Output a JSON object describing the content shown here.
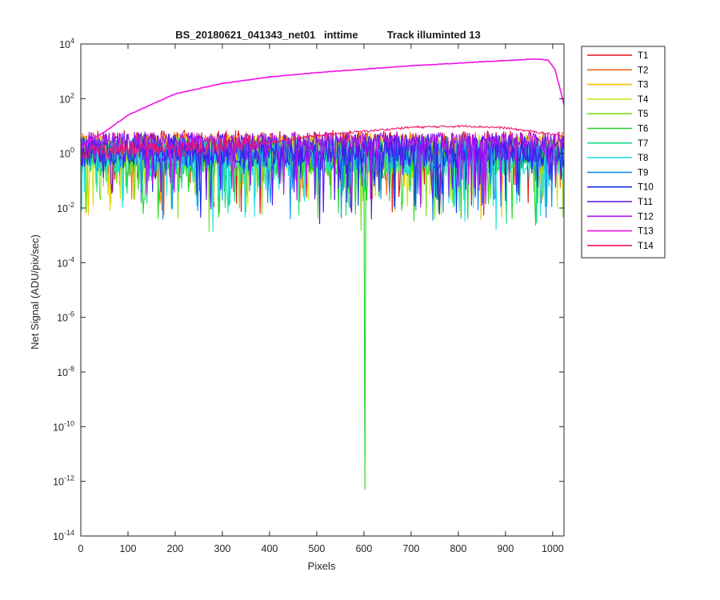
{
  "chart_data": {
    "type": "line",
    "title": "BS_20180621_041343_net01   inttime          Track illuminted 13",
    "xlabel": "Pixels",
    "ylabel": "Net Signal (ADU/pix/sec)",
    "xlim": [
      0,
      1024
    ],
    "ylim_log10": [
      -14,
      4
    ],
    "y_scale": "log",
    "grid": false,
    "legend_placement": "outside-top-right",
    "x_ticks": [
      0,
      100,
      200,
      300,
      400,
      500,
      600,
      700,
      800,
      900,
      1000
    ],
    "y_ticks": [
      {
        "base": "10",
        "exp": "4",
        "log": 4
      },
      {
        "base": "10",
        "exp": "2",
        "log": 2
      },
      {
        "base": "10",
        "exp": "0",
        "log": 0
      },
      {
        "base": "10",
        "exp": "-2",
        "log": -2
      },
      {
        "base": "10",
        "exp": "-4",
        "log": -4
      },
      {
        "base": "10",
        "exp": "-6",
        "log": -6
      },
      {
        "base": "10",
        "exp": "-8",
        "log": -8
      },
      {
        "base": "10",
        "exp": "-10",
        "log": -10
      },
      {
        "base": "10",
        "exp": "-12",
        "log": -12
      },
      {
        "base": "10",
        "exp": "-14",
        "log": -14
      }
    ],
    "series": [
      {
        "name": "T1",
        "color": "#e8101a",
        "center": 0.3,
        "spread": 0.55
      },
      {
        "name": "T2",
        "color": "#f26a12",
        "center": 0.2,
        "spread": 0.6
      },
      {
        "name": "T3",
        "color": "#f5c400",
        "center": 0.1,
        "spread": 0.6
      },
      {
        "name": "T4",
        "color": "#c9e61a",
        "center": 0.0,
        "spread": 0.7
      },
      {
        "name": "T5",
        "color": "#79e219",
        "center": -0.1,
        "spread": 0.7
      },
      {
        "name": "T6",
        "color": "#22d924",
        "center": -0.2,
        "spread": 0.7,
        "spike": {
          "x": 602,
          "value": 5e-13
        }
      },
      {
        "name": "T7",
        "color": "#22d98a",
        "center": -0.1,
        "spread": 0.6
      },
      {
        "name": "T8",
        "color": "#25e3e3",
        "center": -0.1,
        "spread": 0.7
      },
      {
        "name": "T9",
        "color": "#1a8cf0",
        "center": 0.0,
        "spread": 0.6
      },
      {
        "name": "T10",
        "color": "#1a2ce8",
        "center": 0.1,
        "spread": 0.6
      },
      {
        "name": "T11",
        "color": "#5a14f0",
        "center": 0.2,
        "spread": 0.55
      },
      {
        "name": "T12",
        "color": "#b012f0",
        "center": 0.45,
        "spread": 0.35
      },
      {
        "name": "T13",
        "color": "#f212e6",
        "center": 0.3,
        "spread": 0.0,
        "profile": [
          [
            0,
            1.5
          ],
          [
            20,
            3.0
          ],
          [
            50,
            6.0
          ],
          [
            100,
            25
          ],
          [
            200,
            150
          ],
          [
            300,
            360
          ],
          [
            400,
            620
          ],
          [
            500,
            900
          ],
          [
            600,
            1200
          ],
          [
            700,
            1600
          ],
          [
            800,
            2000
          ],
          [
            900,
            2500
          ],
          [
            960,
            2800
          ],
          [
            990,
            2600
          ],
          [
            1005,
            1200
          ],
          [
            1024,
            60
          ]
        ]
      },
      {
        "name": "T14",
        "color": "#f0156e",
        "center": 0.2,
        "spread": 0.5,
        "envelope": [
          [
            0,
            1.2
          ],
          [
            200,
            1.5
          ],
          [
            400,
            2.5
          ],
          [
            500,
            4.5
          ],
          [
            700,
            9.0
          ],
          [
            820,
            10.0
          ],
          [
            900,
            8.5
          ],
          [
            1000,
            5.0
          ],
          [
            1024,
            4.0
          ]
        ]
      }
    ]
  }
}
